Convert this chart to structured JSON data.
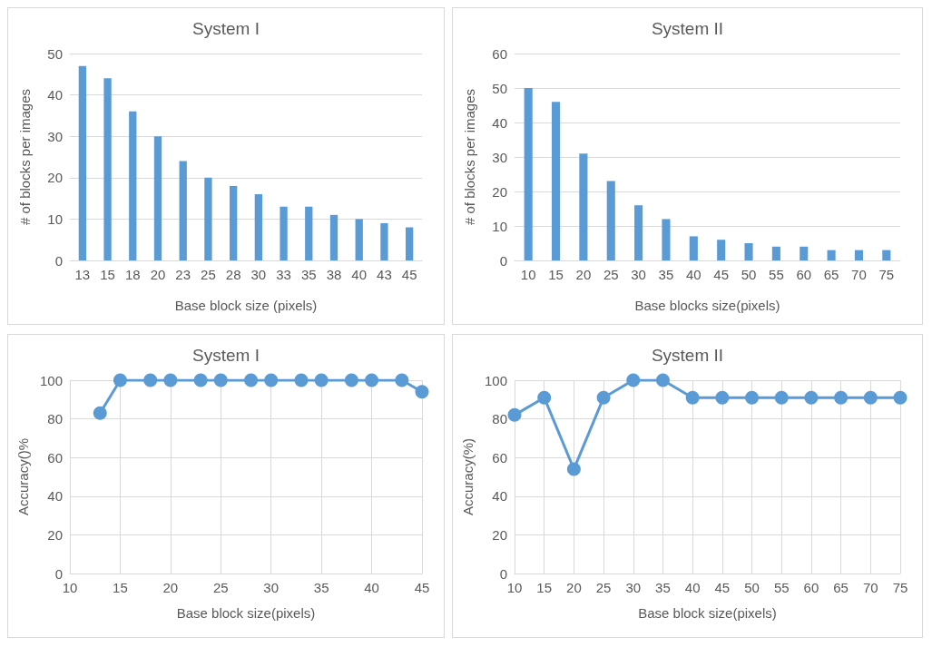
{
  "chart_data": [
    {
      "type": "bar",
      "title": "System I",
      "xlabel": "Base block size (pixels)",
      "ylabel": "# of blocks per images",
      "categories": [
        "13",
        "15",
        "18",
        "20",
        "23",
        "25",
        "28",
        "30",
        "33",
        "35",
        "38",
        "40",
        "43",
        "45"
      ],
      "values": [
        47,
        44,
        36,
        30,
        24,
        20,
        18,
        16,
        13,
        13,
        11,
        10,
        9,
        8
      ],
      "color": "#5b9bd5",
      "ylim": [
        0,
        50
      ],
      "yticks": [
        0,
        10,
        20,
        30,
        40,
        50
      ],
      "grid": "y"
    },
    {
      "type": "bar",
      "title": "System II",
      "xlabel": "Base blocks size(pixels)",
      "ylabel": "# of blocks per images",
      "categories": [
        "10",
        "15",
        "20",
        "25",
        "30",
        "35",
        "40",
        "45",
        "50",
        "55",
        "60",
        "65",
        "70",
        "75"
      ],
      "values": [
        50,
        46,
        31,
        23,
        16,
        12,
        7,
        6,
        5,
        4,
        4,
        3,
        3,
        3
      ],
      "color": "#5b9bd5",
      "ylim": [
        0,
        60
      ],
      "yticks": [
        0,
        10,
        20,
        30,
        40,
        50,
        60
      ],
      "grid": "y"
    },
    {
      "type": "line",
      "title": "System I",
      "xlabel": "Base block size(pixels)",
      "ylabel": "Accuracy()%",
      "x": [
        13,
        15,
        18,
        20,
        23,
        25,
        28,
        30,
        33,
        35,
        38,
        40,
        43,
        45
      ],
      "values": [
        83,
        100,
        100,
        100,
        100,
        100,
        100,
        100,
        100,
        100,
        100,
        100,
        100,
        94
      ],
      "color": "#5b9bd5",
      "xlim": [
        10,
        45
      ],
      "xticks": [
        10,
        15,
        20,
        25,
        30,
        35,
        40,
        45
      ],
      "ylim": [
        0,
        100
      ],
      "yticks": [
        0,
        20,
        40,
        60,
        80,
        100
      ],
      "grid": true,
      "marker": "circle"
    },
    {
      "type": "line",
      "title": "System II",
      "xlabel": "Base block size(pixels)",
      "ylabel": "Accuracy(%)",
      "x": [
        10,
        15,
        20,
        25,
        30,
        35,
        40,
        45,
        50,
        55,
        60,
        65,
        70,
        75
      ],
      "values": [
        82,
        91,
        54,
        91,
        100,
        100,
        91,
        91,
        91,
        91,
        91,
        91,
        91,
        91
      ],
      "color": "#5b9bd5",
      "xlim": [
        10,
        75
      ],
      "xticks": [
        10,
        15,
        20,
        25,
        30,
        35,
        40,
        45,
        50,
        55,
        60,
        65,
        70,
        75
      ],
      "ylim": [
        0,
        100
      ],
      "yticks": [
        0,
        20,
        40,
        60,
        80,
        100
      ],
      "grid": true,
      "marker": "circle"
    }
  ]
}
